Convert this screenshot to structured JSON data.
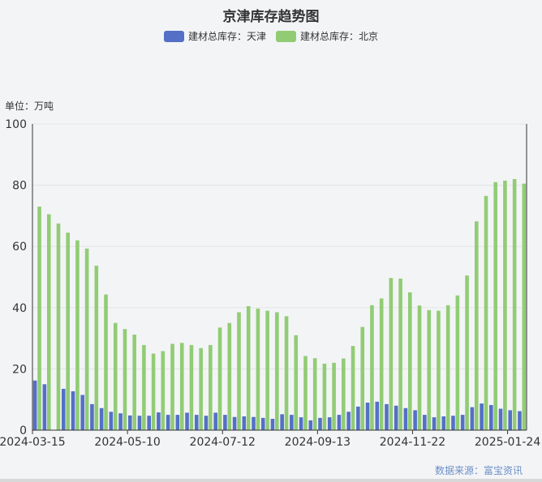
{
  "chart_data": {
    "type": "bar",
    "title": "京津库存趋势图",
    "unit_label": "单位：万吨",
    "source": "数据来源：富宝资讯",
    "ylim": [
      0,
      100
    ],
    "yticks": [
      0,
      20,
      40,
      60,
      80,
      100
    ],
    "xtick_labels": [
      "2024-03-15",
      "2024-05-10",
      "2024-07-12",
      "2024-09-13",
      "2024-11-22",
      "2025-01-24"
    ],
    "xtick_indices": [
      0,
      10,
      20,
      30,
      40,
      50
    ],
    "grid": true,
    "legend_position": "top",
    "series": [
      {
        "name": "建材总库存：天津",
        "color": "#5470c6",
        "values": [
          16.2,
          15.0,
          null,
          13.5,
          12.7,
          11.5,
          8.5,
          7.2,
          6.0,
          5.5,
          4.8,
          4.7,
          4.7,
          5.8,
          5.0,
          5.0,
          5.7,
          5.0,
          4.7,
          5.7,
          5.0,
          4.3,
          4.5,
          4.3,
          4.0,
          3.7,
          5.2,
          5.0,
          4.2,
          3.2,
          4.0,
          4.2,
          5.0,
          6.0,
          7.7,
          9.0,
          9.3,
          8.5,
          8.0,
          7.2,
          6.5,
          5.0,
          4.2,
          4.5,
          4.7,
          5.0,
          7.5,
          8.7,
          8.2,
          7.0,
          6.5,
          6.2
        ]
      },
      {
        "name": "建材总库存：北京",
        "color": "#91cc75",
        "values": [
          73.0,
          70.5,
          67.5,
          64.5,
          62.0,
          59.3,
          53.7,
          44.3,
          35.0,
          33.0,
          31.2,
          27.8,
          25.0,
          25.8,
          28.2,
          28.5,
          27.8,
          26.8,
          27.8,
          33.5,
          35.0,
          38.5,
          40.5,
          39.7,
          39.0,
          38.5,
          37.2,
          31.0,
          24.2,
          23.5,
          21.7,
          22.0,
          23.4,
          27.5,
          33.7,
          40.8,
          43.0,
          49.7,
          49.5,
          45.0,
          40.7,
          39.2,
          39.0,
          40.8,
          44.0,
          50.5,
          68.2,
          76.5,
          81.0,
          81.5,
          82.0,
          80.5
        ]
      }
    ]
  }
}
